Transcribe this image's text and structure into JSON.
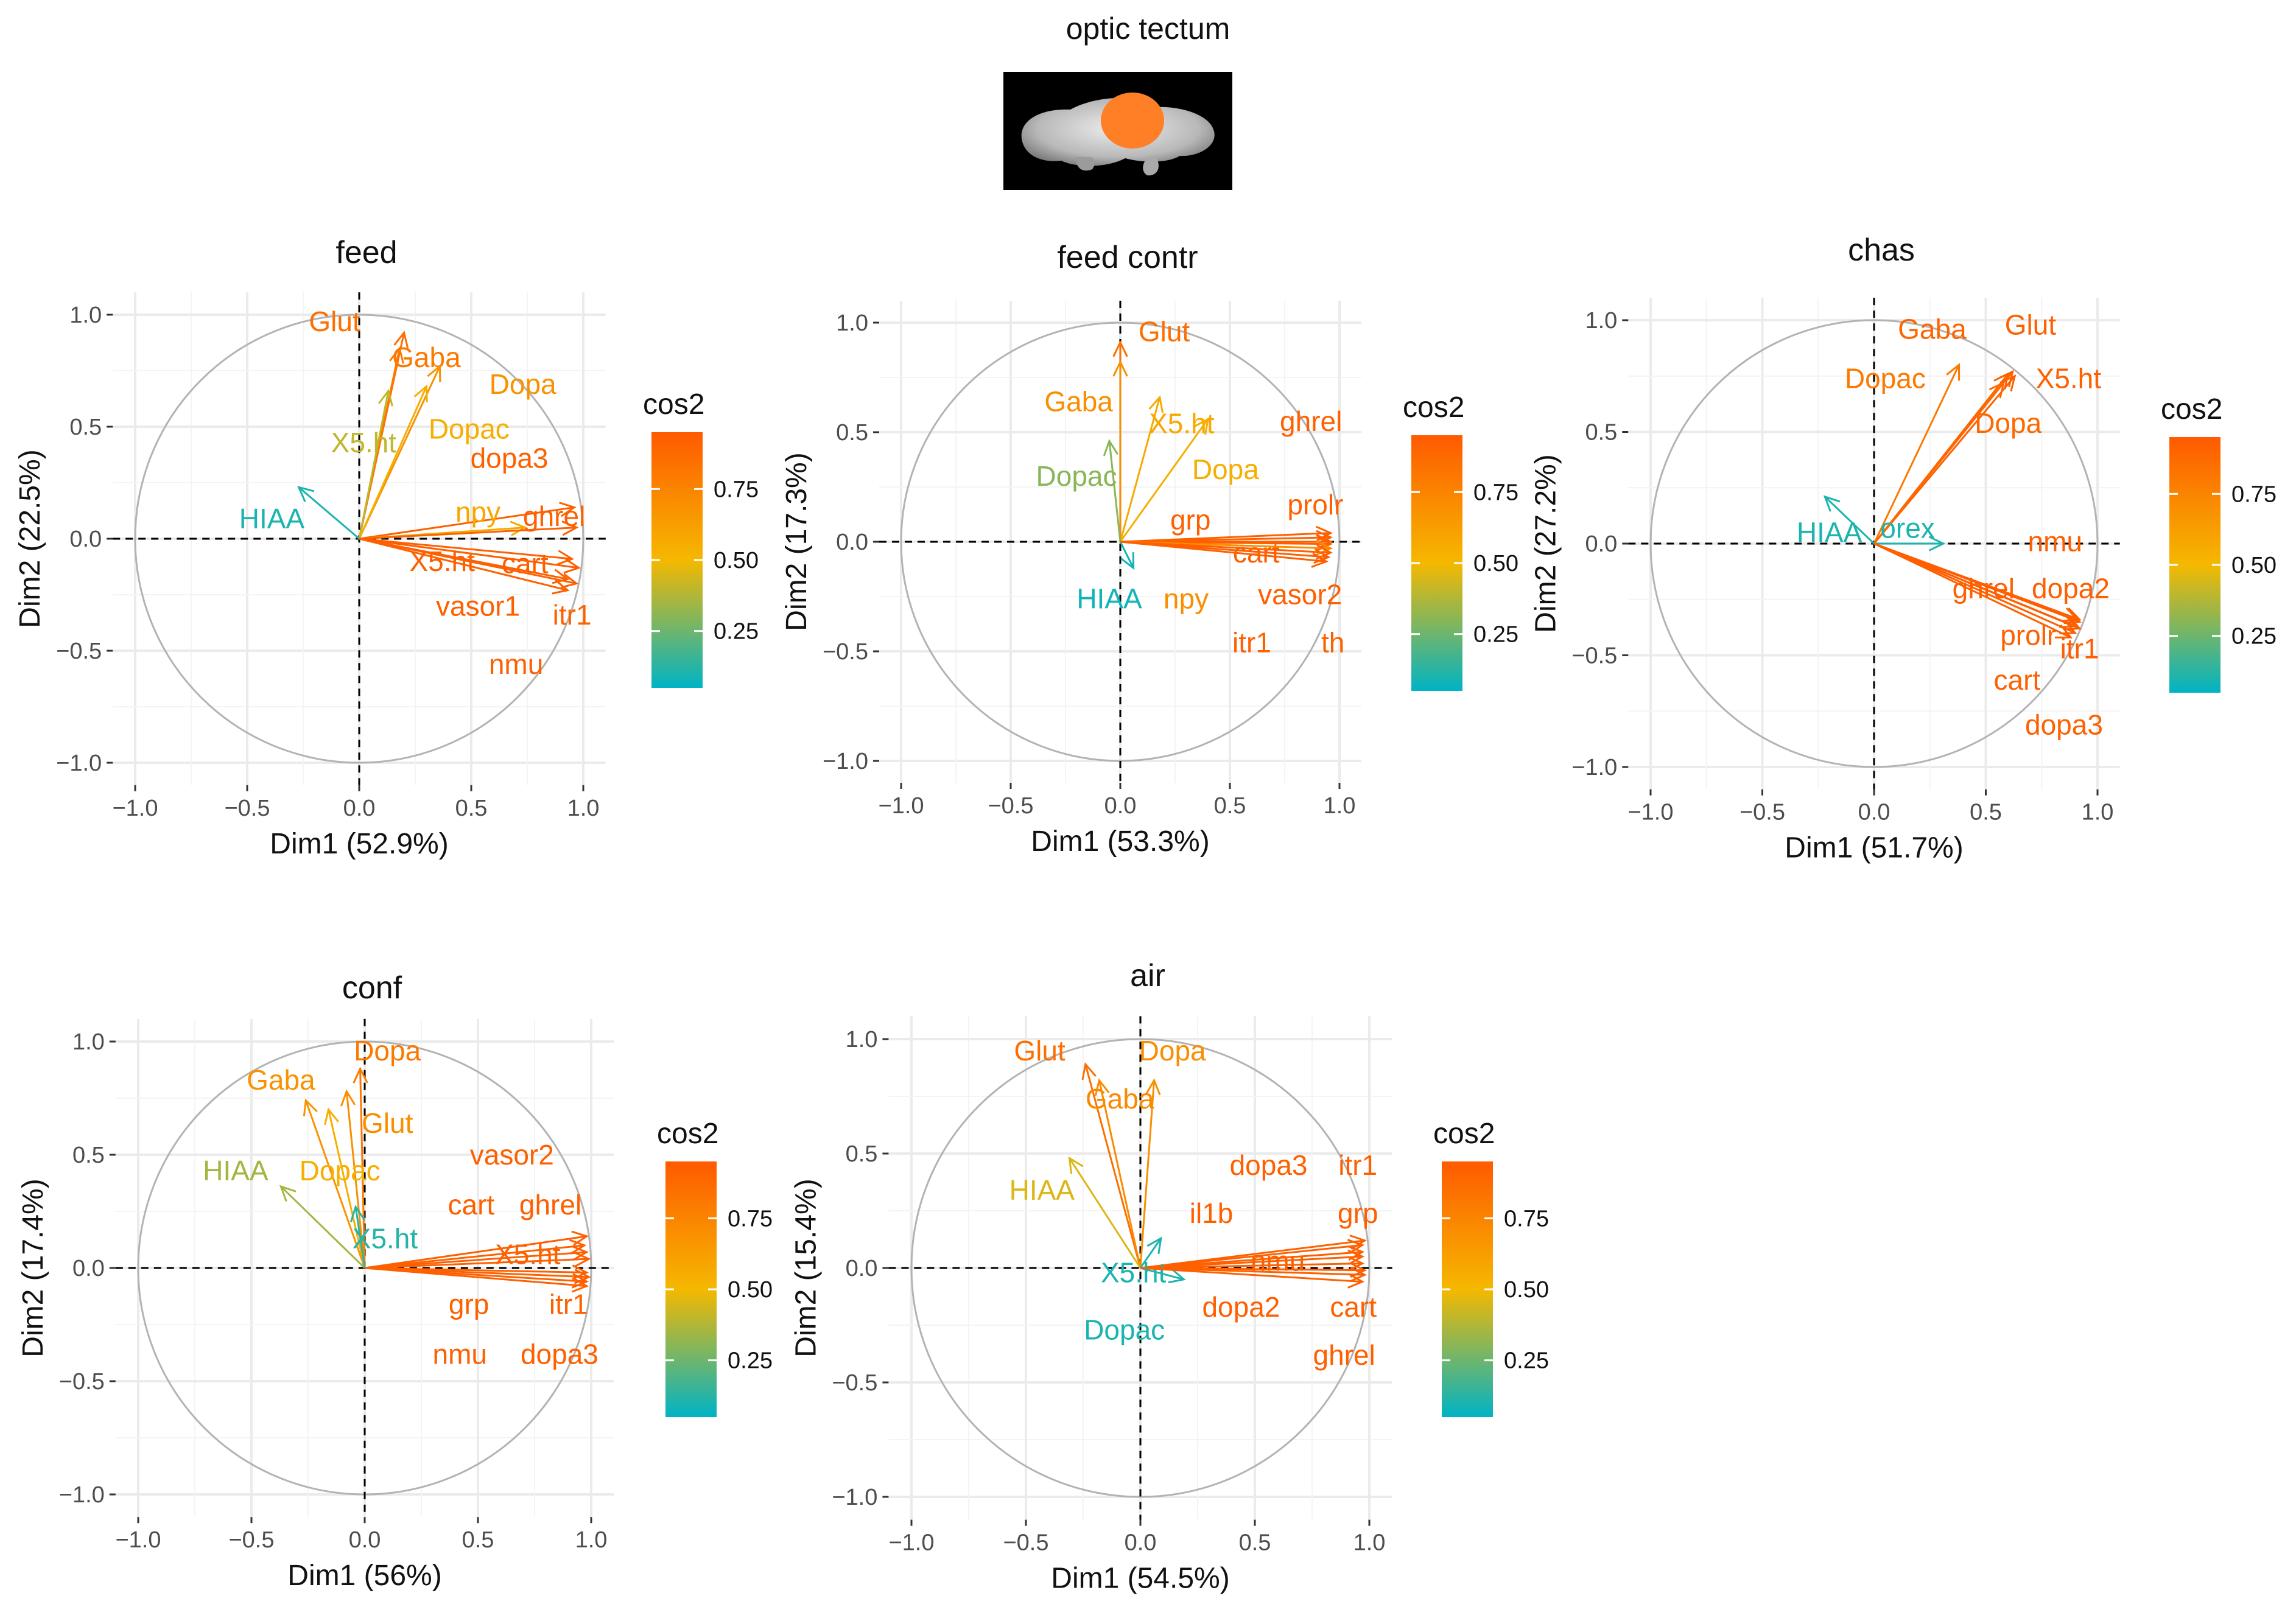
{
  "figure": {
    "title": "optic tectum",
    "brain_image_icon": "brain-optic-tectum-icon",
    "highlight_color": "#ff7f27"
  },
  "colors": {
    "low": "#00b3c5",
    "mid": "#f5b800",
    "high": "#ff5a00",
    "circle": "#b3b3b3",
    "grid": "#ebebeb",
    "zero_line": "#000000"
  },
  "chart_data": [
    {
      "type": "scatter",
      "title": "feed",
      "xlabel": "Dim1 (52.9%)",
      "ylabel": "Dim2 (22.5%)",
      "xlim": [
        -1,
        1
      ],
      "ylim": [
        -1,
        1
      ],
      "xticks": [
        "−1.0",
        "−0.5",
        "0.0",
        "0.5",
        "1.0"
      ],
      "yticks": [
        "−1.0",
        "−0.5",
        "0.0",
        "0.5",
        "1.0"
      ],
      "legend": {
        "title": "cos2",
        "ticks": [
          "0.75",
          "0.50",
          "0.25"
        ],
        "tick_values": [
          0.75,
          0.5,
          0.25
        ],
        "placement": "right"
      },
      "vectors": [
        {
          "name": "Glut",
          "x": 0.2,
          "y": 0.92,
          "cos2": 0.85,
          "lx": -0.11,
          "ly": 0.97
        },
        {
          "name": "Gaba",
          "x": 0.18,
          "y": 0.85,
          "cos2": 0.8,
          "lx": 0.3,
          "ly": 0.81
        },
        {
          "name": "Dopa",
          "x": 0.36,
          "y": 0.77,
          "cos2": 0.68,
          "lx": 0.73,
          "ly": 0.69
        },
        {
          "name": "Dopac",
          "x": 0.3,
          "y": 0.68,
          "cos2": 0.55,
          "lx": 0.49,
          "ly": 0.49
        },
        {
          "name": "X5.ht",
          "x": 0.13,
          "y": 0.66,
          "cos2": 0.4,
          "lx": 0.02,
          "ly": 0.43
        },
        {
          "name": "dopa3",
          "x": 0.96,
          "y": 0.14,
          "cos2": 0.92,
          "lx": 0.67,
          "ly": 0.36
        },
        {
          "name": "npy",
          "x": 0.74,
          "y": 0.05,
          "cos2": 0.58,
          "lx": 0.53,
          "ly": 0.12
        },
        {
          "name": "ghrel",
          "x": 0.97,
          "y": 0.05,
          "cos2": 0.92,
          "lx": 0.87,
          "ly": 0.1
        },
        {
          "name": "HIAA",
          "x": -0.27,
          "y": 0.23,
          "cos2": 0.1,
          "lx": -0.39,
          "ly": 0.09
        },
        {
          "name": "X5.ht",
          "x": 0.95,
          "y": -0.09,
          "cos2": 0.92,
          "lx": 0.37,
          "ly": -0.1
        },
        {
          "name": "cart",
          "x": 0.98,
          "y": -0.13,
          "cos2": 0.93,
          "lx": 0.74,
          "ly": -0.11
        },
        {
          "name": "vasor1",
          "x": 0.93,
          "y": -0.18,
          "cos2": 0.92,
          "lx": 0.53,
          "ly": -0.3
        },
        {
          "name": "itr1",
          "x": 0.97,
          "y": -0.2,
          "cos2": 0.92,
          "lx": 0.95,
          "ly": -0.34
        },
        {
          "name": "nmu",
          "x": 0.93,
          "y": -0.23,
          "cos2": 0.92,
          "lx": 0.7,
          "ly": -0.56
        }
      ]
    },
    {
      "type": "scatter",
      "title": "feed contr",
      "xlabel": "Dim1 (53.3%)",
      "ylabel": "Dim2 (17.3%)",
      "xlim": [
        -1,
        1
      ],
      "ylim": [
        -1,
        1
      ],
      "xticks": [
        "−1.0",
        "−0.5",
        "0.0",
        "0.5",
        "1.0"
      ],
      "yticks": [
        "−1.0",
        "−0.5",
        "0.0",
        "0.5",
        "1.0"
      ],
      "legend": {
        "title": "cos2",
        "ticks": [
          "0.75",
          "0.50",
          "0.25"
        ],
        "tick_values": [
          0.75,
          0.5,
          0.25
        ],
        "placement": "right"
      },
      "vectors": [
        {
          "name": "Glut",
          "x": 0.0,
          "y": 0.91,
          "cos2": 0.85,
          "lx": 0.2,
          "ly": 0.96
        },
        {
          "name": "Gaba",
          "x": 0.0,
          "y": 0.82,
          "cos2": 0.7,
          "lx": -0.19,
          "ly": 0.64
        },
        {
          "name": "X5.ht",
          "x": 0.18,
          "y": 0.66,
          "cos2": 0.57,
          "lx": 0.28,
          "ly": 0.54
        },
        {
          "name": "Dopa",
          "x": 0.4,
          "y": 0.56,
          "cos2": 0.55,
          "lx": 0.48,
          "ly": 0.33
        },
        {
          "name": "Dopac",
          "x": -0.05,
          "y": 0.46,
          "cos2": 0.3,
          "lx": -0.2,
          "ly": 0.3
        },
        {
          "name": "ghrel",
          "x": 0.96,
          "y": 0.04,
          "cos2": 0.92,
          "lx": 0.87,
          "ly": 0.55
        },
        {
          "name": "prolr",
          "x": 0.96,
          "y": 0.02,
          "cos2": 0.92,
          "lx": 0.89,
          "ly": 0.17
        },
        {
          "name": "grp",
          "x": 0.96,
          "y": 0.0,
          "cos2": 0.92,
          "lx": 0.32,
          "ly": 0.1
        },
        {
          "name": "cart",
          "x": 0.96,
          "y": -0.01,
          "cos2": 0.92,
          "lx": 0.62,
          "ly": -0.05
        },
        {
          "name": "HIAA",
          "x": 0.06,
          "y": -0.12,
          "cos2": 0.08,
          "lx": -0.05,
          "ly": -0.26
        },
        {
          "name": "npy",
          "x": 0.96,
          "y": -0.03,
          "cos2": 0.7,
          "lx": 0.3,
          "ly": -0.26
        },
        {
          "name": "vasor2",
          "x": 0.96,
          "y": -0.05,
          "cos2": 0.92,
          "lx": 0.82,
          "ly": -0.24
        },
        {
          "name": "itr1",
          "x": 0.94,
          "y": -0.09,
          "cos2": 0.92,
          "lx": 0.6,
          "ly": -0.46
        },
        {
          "name": "th",
          "x": 0.95,
          "y": -0.07,
          "cos2": 0.92,
          "lx": 0.97,
          "ly": -0.46
        }
      ]
    },
    {
      "type": "scatter",
      "title": "chas",
      "xlabel": "Dim1 (51.7%)",
      "ylabel": "Dim2 (27.2%)",
      "xlim": [
        -1,
        1
      ],
      "ylim": [
        -1,
        1
      ],
      "xticks": [
        "−1.0",
        "−0.5",
        "0.0",
        "0.5",
        "1.0"
      ],
      "yticks": [
        "−1.0",
        "−0.5",
        "0.0",
        "0.5",
        "1.0"
      ],
      "legend": {
        "title": "cos2",
        "ticks": [
          "0.75",
          "0.50",
          "0.25"
        ],
        "tick_values": [
          0.75,
          0.5,
          0.25
        ],
        "placement": "right"
      },
      "vectors": [
        {
          "name": "Gaba",
          "x": 0.6,
          "y": 0.76,
          "cos2": 0.9,
          "lx": 0.26,
          "ly": 0.96
        },
        {
          "name": "Glut",
          "x": 0.62,
          "y": 0.77,
          "cos2": 0.92,
          "lx": 0.7,
          "ly": 0.98
        },
        {
          "name": "X5.ht",
          "x": 0.63,
          "y": 0.75,
          "cos2": 0.92,
          "lx": 0.87,
          "ly": 0.74
        },
        {
          "name": "Dopac",
          "x": 0.38,
          "y": 0.8,
          "cos2": 0.8,
          "lx": 0.05,
          "ly": 0.74
        },
        {
          "name": "Dopa",
          "x": 0.58,
          "y": 0.72,
          "cos2": 0.88,
          "lx": 0.6,
          "ly": 0.54
        },
        {
          "name": "HIAA",
          "x": -0.22,
          "y": 0.21,
          "cos2": 0.1,
          "lx": -0.2,
          "ly": 0.05
        },
        {
          "name": "orex",
          "x": 0.31,
          "y": 0.0,
          "cos2": 0.1,
          "lx": 0.15,
          "ly": 0.07
        },
        {
          "name": "nmu",
          "x": 0.92,
          "y": -0.34,
          "cos2": 0.93,
          "lx": 0.81,
          "ly": 0.01
        },
        {
          "name": "ghrel",
          "x": 0.91,
          "y": -0.34,
          "cos2": 0.92,
          "lx": 0.49,
          "ly": -0.2
        },
        {
          "name": "dopa2",
          "x": 0.92,
          "y": -0.35,
          "cos2": 0.93,
          "lx": 0.88,
          "ly": -0.2
        },
        {
          "name": "prolr",
          "x": 0.9,
          "y": -0.37,
          "cos2": 0.92,
          "lx": 0.69,
          "ly": -0.41
        },
        {
          "name": "itr1",
          "x": 0.92,
          "y": -0.38,
          "cos2": 0.93,
          "lx": 0.92,
          "ly": -0.47
        },
        {
          "name": "cart",
          "x": 0.9,
          "y": -0.4,
          "cos2": 0.92,
          "lx": 0.64,
          "ly": -0.61
        },
        {
          "name": "dopa3",
          "x": 0.88,
          "y": -0.42,
          "cos2": 0.92,
          "lx": 0.85,
          "ly": -0.81
        }
      ]
    },
    {
      "type": "scatter",
      "title": "conf",
      "xlabel": "Dim1 (56%)",
      "ylabel": "Dim2 (17.4%)",
      "xlim": [
        -1,
        1
      ],
      "ylim": [
        -1,
        1
      ],
      "xticks": [
        "−1.0",
        "−0.5",
        "0.0",
        "0.5",
        "1.0"
      ],
      "yticks": [
        "−1.0",
        "−0.5",
        "0.0",
        "0.5",
        "1.0"
      ],
      "legend": {
        "title": "cos2",
        "ticks": [
          "0.75",
          "0.50",
          "0.25"
        ],
        "tick_values": [
          0.75,
          0.5,
          0.25
        ],
        "placement": "right"
      },
      "vectors": [
        {
          "name": "Dopa",
          "x": -0.02,
          "y": 0.88,
          "cos2": 0.8,
          "lx": 0.1,
          "ly": 0.96
        },
        {
          "name": "Gaba",
          "x": -0.26,
          "y": 0.74,
          "cos2": 0.68,
          "lx": -0.37,
          "ly": 0.83
        },
        {
          "name": "Glut",
          "x": -0.08,
          "y": 0.78,
          "cos2": 0.7,
          "lx": 0.1,
          "ly": 0.64
        },
        {
          "name": "HIAA",
          "x": -0.37,
          "y": 0.36,
          "cos2": 0.35,
          "lx": -0.57,
          "ly": 0.43
        },
        {
          "name": "Dopac",
          "x": -0.16,
          "y": 0.7,
          "cos2": 0.55,
          "lx": -0.11,
          "ly": 0.43
        },
        {
          "name": "X5.ht",
          "x": -0.04,
          "y": 0.27,
          "cos2": 0.12,
          "lx": 0.09,
          "ly": 0.13
        },
        {
          "name": "vasor2",
          "x": 0.98,
          "y": 0.14,
          "cos2": 0.92,
          "lx": 0.65,
          "ly": 0.5
        },
        {
          "name": "cart",
          "x": 0.97,
          "y": 0.1,
          "cos2": 0.92,
          "lx": 0.47,
          "ly": 0.28
        },
        {
          "name": "ghrel",
          "x": 0.98,
          "y": 0.07,
          "cos2": 0.92,
          "lx": 0.82,
          "ly": 0.28
        },
        {
          "name": "X5.ht",
          "x": 0.99,
          "y": 0.04,
          "cos2": 0.92,
          "lx": 0.72,
          "ly": 0.06
        },
        {
          "name": "grp",
          "x": 0.98,
          "y": -0.02,
          "cos2": 0.92,
          "lx": 0.46,
          "ly": -0.16
        },
        {
          "name": "itr1",
          "x": 0.99,
          "y": -0.04,
          "cos2": 0.92,
          "lx": 0.9,
          "ly": -0.16
        },
        {
          "name": "nmu",
          "x": 0.98,
          "y": -0.06,
          "cos2": 0.92,
          "lx": 0.42,
          "ly": -0.38
        },
        {
          "name": "dopa3",
          "x": 0.98,
          "y": -0.08,
          "cos2": 0.92,
          "lx": 0.86,
          "ly": -0.38
        }
      ]
    },
    {
      "type": "scatter",
      "title": "air",
      "xlabel": "Dim1 (54.5%)",
      "ylabel": "Dim2 (15.4%)",
      "xlim": [
        -1,
        1
      ],
      "ylim": [
        -1,
        1
      ],
      "xticks": [
        "−1.0",
        "−0.5",
        "0.0",
        "0.5",
        "1.0"
      ],
      "yticks": [
        "−1.0",
        "−0.5",
        "0.0",
        "0.5",
        "1.0"
      ],
      "legend": {
        "title": "cos2",
        "ticks": [
          "0.75",
          "0.50",
          "0.25"
        ],
        "tick_values": [
          0.75,
          0.5,
          0.25
        ],
        "placement": "right"
      },
      "vectors": [
        {
          "name": "Glut",
          "x": -0.24,
          "y": 0.89,
          "cos2": 0.85,
          "lx": -0.44,
          "ly": 0.95
        },
        {
          "name": "Dopa",
          "x": 0.06,
          "y": 0.82,
          "cos2": 0.7,
          "lx": 0.14,
          "ly": 0.95
        },
        {
          "name": "Gaba",
          "x": -0.18,
          "y": 0.82,
          "cos2": 0.72,
          "lx": -0.09,
          "ly": 0.74
        },
        {
          "name": "HIAA",
          "x": -0.31,
          "y": 0.48,
          "cos2": 0.45,
          "lx": -0.43,
          "ly": 0.34
        },
        {
          "name": "dopa3",
          "x": 0.98,
          "y": 0.12,
          "cos2": 0.92,
          "lx": 0.56,
          "ly": 0.45
        },
        {
          "name": "itr1",
          "x": 0.97,
          "y": 0.1,
          "cos2": 0.92,
          "lx": 0.95,
          "ly": 0.45
        },
        {
          "name": "il1b",
          "x": 0.97,
          "y": 0.07,
          "cos2": 0.92,
          "lx": 0.31,
          "ly": 0.24
        },
        {
          "name": "grp",
          "x": 0.97,
          "y": 0.05,
          "cos2": 0.92,
          "lx": 0.95,
          "ly": 0.24
        },
        {
          "name": "nmu",
          "x": 0.97,
          "y": 0.02,
          "cos2": 0.92,
          "lx": 0.6,
          "ly": 0.03
        },
        {
          "name": "X5.ht",
          "x": 0.09,
          "y": 0.13,
          "cos2": 0.1,
          "lx": -0.03,
          "ly": -0.02
        },
        {
          "name": "Dopac",
          "x": 0.19,
          "y": -0.05,
          "cos2": 0.1,
          "lx": -0.07,
          "ly": -0.27
        },
        {
          "name": "dopa2",
          "x": 0.98,
          "y": -0.01,
          "cos2": 0.92,
          "lx": 0.44,
          "ly": -0.17
        },
        {
          "name": "cart",
          "x": 0.98,
          "y": -0.03,
          "cos2": 0.92,
          "lx": 0.93,
          "ly": -0.17
        },
        {
          "name": "ghrel",
          "x": 0.97,
          "y": -0.06,
          "cos2": 0.92,
          "lx": 0.89,
          "ly": -0.38
        }
      ]
    }
  ]
}
